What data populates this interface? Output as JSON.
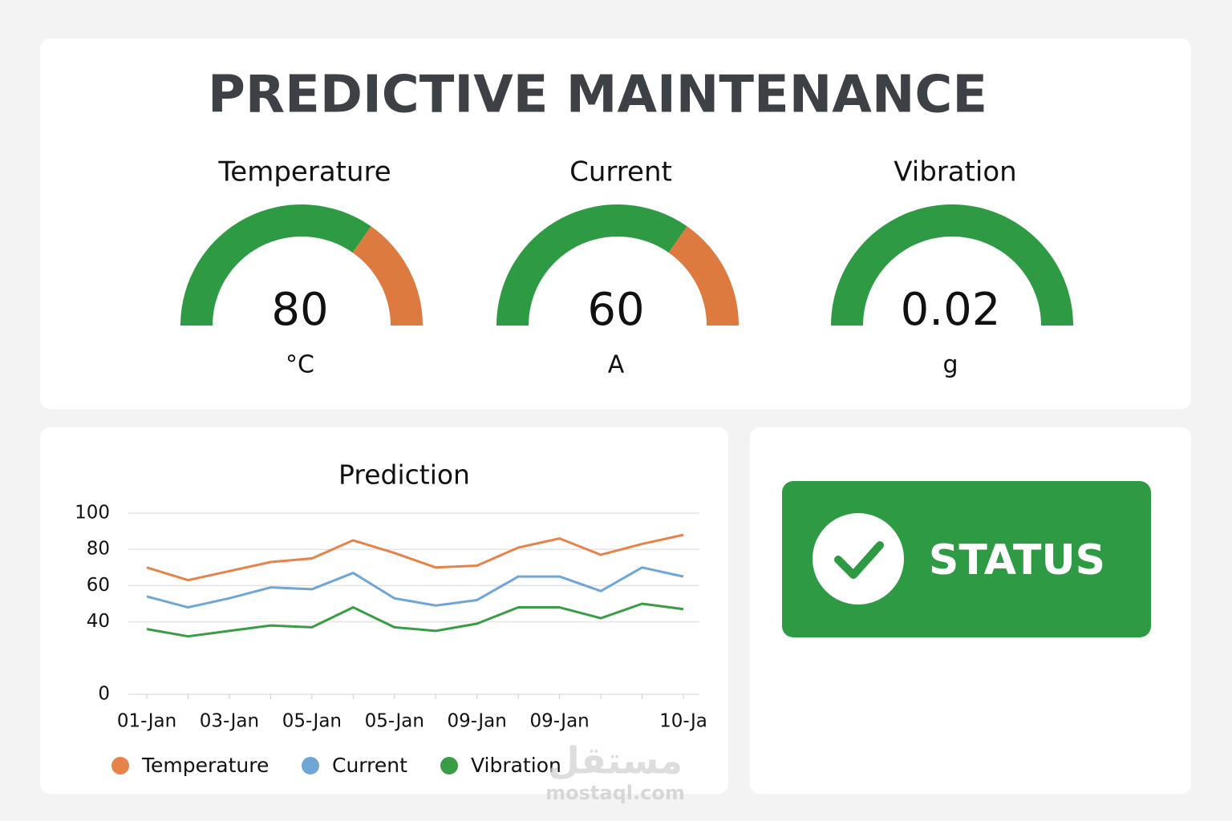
{
  "header": {
    "title": "PREDICTIVE MAINTENANCE"
  },
  "gauges": [
    {
      "label": "Temperature",
      "value": 80,
      "unit": "°C"
    },
    {
      "label": "Current",
      "value": 60,
      "unit": "A"
    },
    {
      "label": "Vibration",
      "value": 0.02,
      "unit": "g"
    }
  ],
  "chart_data": {
    "type": "line",
    "title": "Prediction",
    "categories": [
      "01-Jan",
      null,
      "03-Jan",
      null,
      "05-Jan",
      null,
      "05-Jan",
      null,
      "09-Jan",
      null,
      "09-Jan",
      null,
      null,
      "10-Ja"
    ],
    "series": [
      {
        "name": "Temperature",
        "color": "#e6824a",
        "values": [
          70,
          63,
          68,
          73,
          75,
          85,
          78,
          70,
          71,
          81,
          86,
          77,
          83,
          88
        ]
      },
      {
        "name": "Current",
        "color": "#6fa6d6",
        "values": [
          54,
          48,
          53,
          59,
          58,
          67,
          53,
          49,
          52,
          65,
          65,
          57,
          70,
          65
        ]
      },
      {
        "name": "Vibration",
        "color": "#3a9c44",
        "values": [
          36,
          32,
          35,
          38,
          37,
          48,
          37,
          35,
          39,
          48,
          48,
          42,
          50,
          47
        ]
      }
    ],
    "ylim": [
      0,
      100
    ],
    "yticks": [
      0,
      40,
      60,
      80,
      100
    ],
    "grid": true,
    "legend": "bottom"
  },
  "status": {
    "label": "STATUS"
  },
  "watermark": {
    "arabic": "مستقل",
    "site": "mostaql.com"
  }
}
